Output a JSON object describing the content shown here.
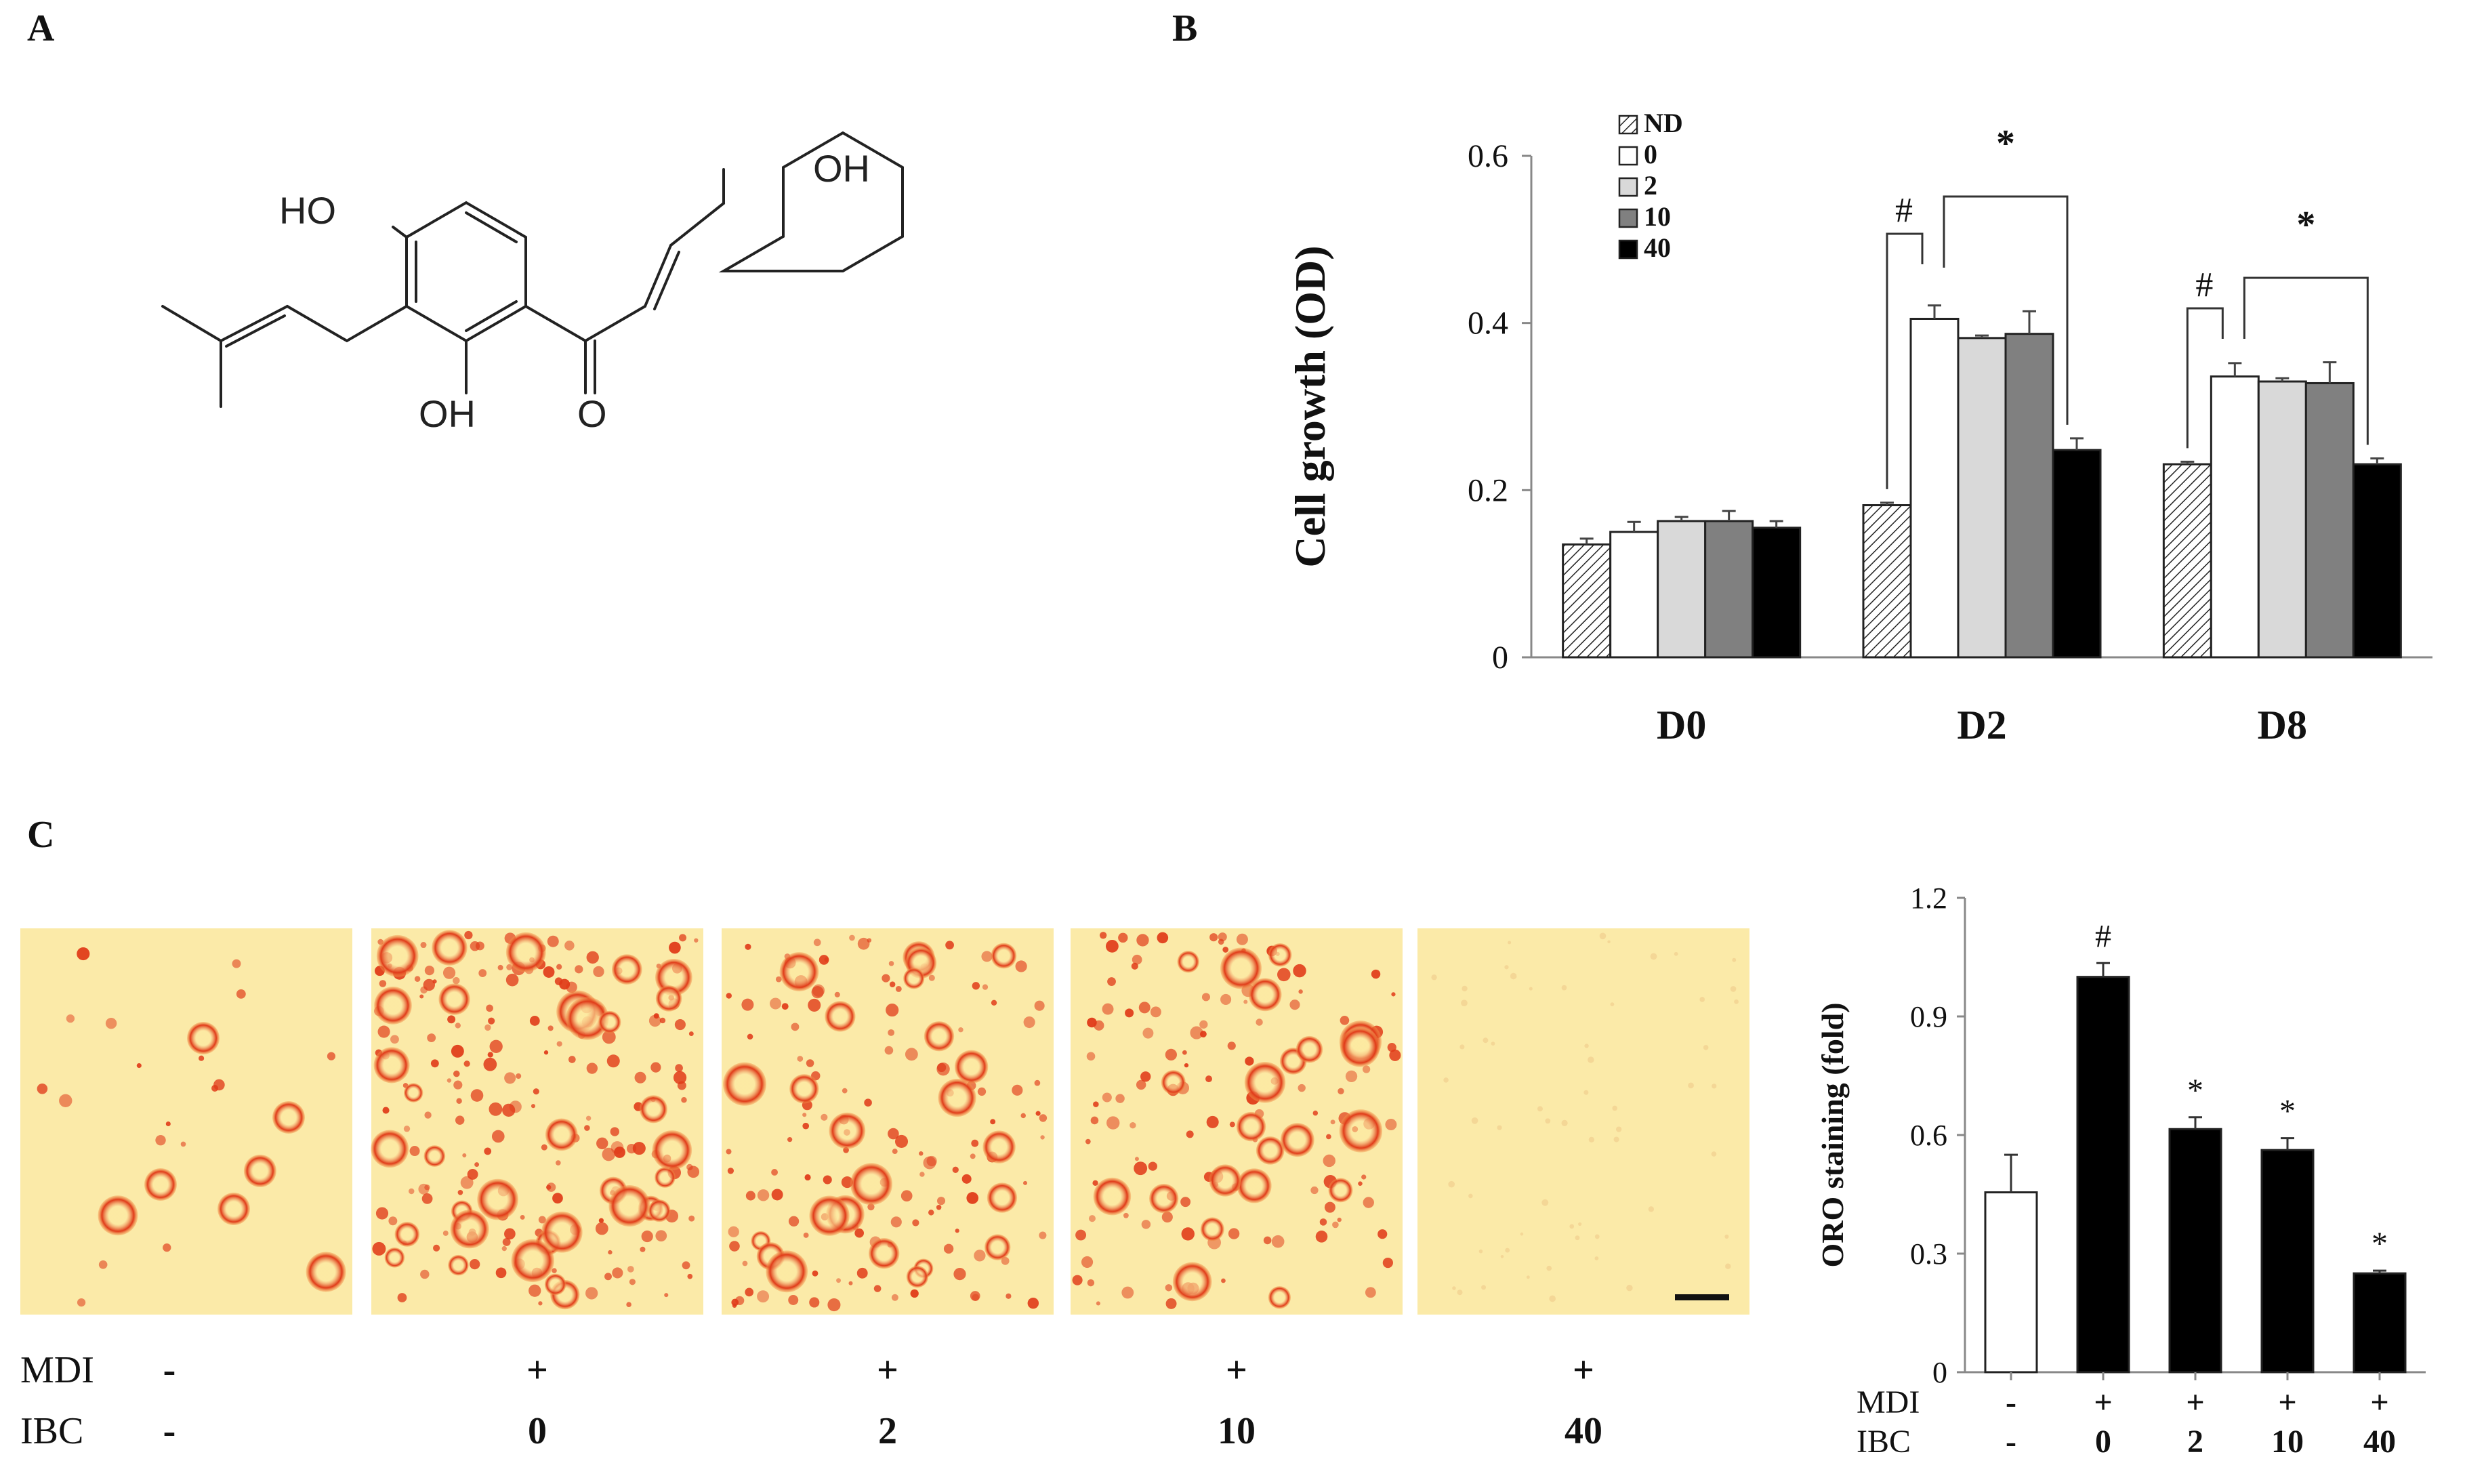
{
  "panel_labels": {
    "a": "A",
    "b": "B",
    "c": "C"
  },
  "molecule": {
    "name": "isobavachalcone structure",
    "labels": {
      "oh_para": "OH",
      "ho_ring": "HO",
      "oh_ortho": "OH",
      "carbonyl": "O"
    }
  },
  "colors": {
    "nd_fill": "#dcdcdc",
    "c0": "#ffffff",
    "c2": "#d9d9d9",
    "c10": "#808080",
    "c40": "#000000",
    "tissue_bg": "#fbeaa8",
    "stain": "#e03a18"
  },
  "chart_data": [
    {
      "type": "bar",
      "panel": "B",
      "ylabel": "Cell growth (OD)",
      "xlabel": "",
      "ylim": [
        0,
        0.6
      ],
      "yticks": [
        0,
        0.2,
        0.4,
        0.6
      ],
      "ytick_labels": [
        "0",
        "0.2",
        "0.4",
        "0.6"
      ],
      "categories": [
        "D0",
        "D2",
        "D8"
      ],
      "legend_position": "top-left",
      "series": [
        {
          "name": "ND",
          "values": [
            0.135,
            0.182,
            0.231
          ],
          "errors": [
            0.007,
            0.003,
            0.003
          ],
          "fill": "hatched"
        },
        {
          "name": "0",
          "values": [
            0.15,
            0.405,
            0.336
          ],
          "errors": [
            0.012,
            0.016,
            0.016
          ],
          "fill": "#ffffff"
        },
        {
          "name": "2",
          "values": [
            0.163,
            0.382,
            0.33
          ],
          "errors": [
            0.005,
            0.003,
            0.004
          ],
          "fill": "#d9d9d9"
        },
        {
          "name": "10",
          "values": [
            0.163,
            0.387,
            0.328
          ],
          "errors": [
            0.012,
            0.027,
            0.025
          ],
          "fill": "#808080"
        },
        {
          "name": "40",
          "values": [
            0.155,
            0.248,
            0.231
          ],
          "errors": [
            0.008,
            0.014,
            0.007
          ],
          "fill": "#000000"
        }
      ],
      "annotations": [
        {
          "symbol": "#",
          "category": "D2",
          "from_series": 0,
          "to_series": 1
        },
        {
          "symbol": "*",
          "category": "D2",
          "from_series": 1,
          "to_series": 4
        },
        {
          "symbol": "#",
          "category": "D8",
          "from_series": 0,
          "to_series": 1
        },
        {
          "symbol": "*",
          "category": "D8",
          "from_series": 1,
          "to_series": 4
        }
      ]
    },
    {
      "type": "bar",
      "panel": "C",
      "ylabel": "ORO staining (fold)",
      "xlabel": "",
      "ylim": [
        0,
        1.2
      ],
      "yticks": [
        0,
        0.3,
        0.6,
        0.9,
        1.2
      ],
      "ytick_labels": [
        "0",
        "0.3",
        "0.6",
        "0.9",
        "1.2"
      ],
      "row_labels": [
        "MDI",
        "IBC"
      ],
      "mdi": [
        "-",
        "+",
        "+",
        "+",
        "+"
      ],
      "ibc": [
        "-",
        "0",
        "2",
        "10",
        "40"
      ],
      "values": [
        0.455,
        1.0,
        0.615,
        0.562,
        0.25
      ],
      "errors": [
        0.095,
        0.035,
        0.03,
        0.03,
        0.007
      ],
      "bar_colors": [
        "#ffffff",
        "#000000",
        "#000000",
        "#000000",
        "#000000"
      ],
      "sig_marks": [
        "",
        "#",
        "*",
        "*",
        "*"
      ]
    }
  ],
  "micrographs": {
    "row_labels": [
      "MDI",
      "IBC"
    ],
    "mdi": [
      "-",
      "+",
      "+",
      "+",
      "+"
    ],
    "ibc": [
      "-",
      "0",
      "2",
      "10",
      "40"
    ],
    "stain_density": [
      0.08,
      0.85,
      0.6,
      0.55,
      0.0
    ]
  }
}
